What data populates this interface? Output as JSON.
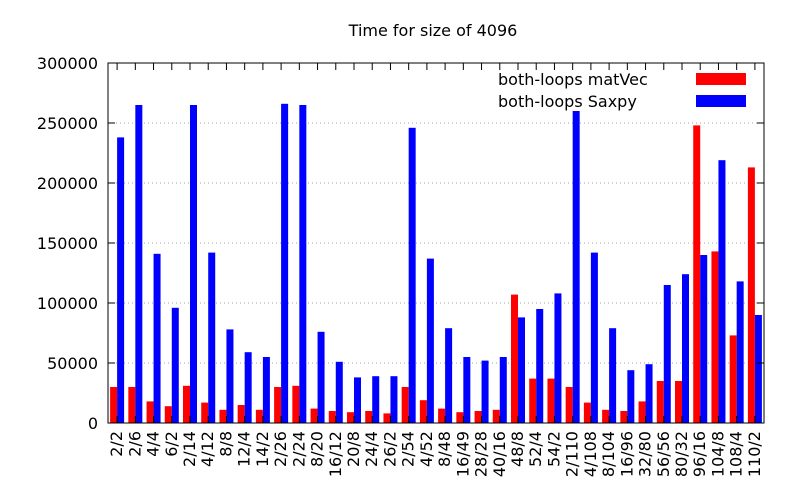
{
  "chart_data": {
    "type": "bar",
    "title": "Time for size of 4096",
    "xlabel": "",
    "ylabel": "",
    "ylim": [
      0,
      300000
    ],
    "yticks": [
      0,
      50000,
      100000,
      150000,
      200000,
      250000,
      300000
    ],
    "grid": "y-dotted",
    "legend_position": "top-right",
    "categories": [
      "2/2",
      "2/6",
      "4/4",
      "6/2",
      "2/14",
      "4/12",
      "8/8",
      "12/4",
      "14/2",
      "2/26",
      "2/24",
      "8/20",
      "16/12",
      "20/8",
      "24/4",
      "26/2",
      "2/54",
      "4/52",
      "8/48",
      "16/49",
      "28/28",
      "40/16",
      "48/8",
      "52/4",
      "54/2",
      "2/110",
      "4/108",
      "8/104",
      "16/96",
      "32/80",
      "56/56",
      "80/32",
      "96/16",
      "104/8",
      "108/4",
      "110/2"
    ],
    "series": [
      {
        "name": "both-loops matVec",
        "color": "#ff0000",
        "values": [
          30000,
          30000,
          18000,
          14000,
          31000,
          17000,
          11000,
          15000,
          11000,
          30000,
          31000,
          12000,
          10000,
          9000,
          10000,
          8000,
          30000,
          19000,
          12000,
          9000,
          10000,
          11000,
          107000,
          37000,
          37000,
          30000,
          17000,
          11000,
          10000,
          18000,
          35000,
          35000,
          248000,
          143000,
          73000,
          213000
        ]
      },
      {
        "name": "both-loops Saxpy",
        "color": "#0000ff",
        "values": [
          238000,
          265000,
          141000,
          96000,
          265000,
          142000,
          78000,
          59000,
          55000,
          266000,
          265000,
          76000,
          51000,
          38000,
          39000,
          39000,
          246000,
          137000,
          79000,
          55000,
          52000,
          55000,
          88000,
          95000,
          108000,
          260000,
          142000,
          79000,
          44000,
          49000,
          115000,
          124000,
          140000,
          219000,
          118000,
          90000
        ]
      }
    ]
  }
}
